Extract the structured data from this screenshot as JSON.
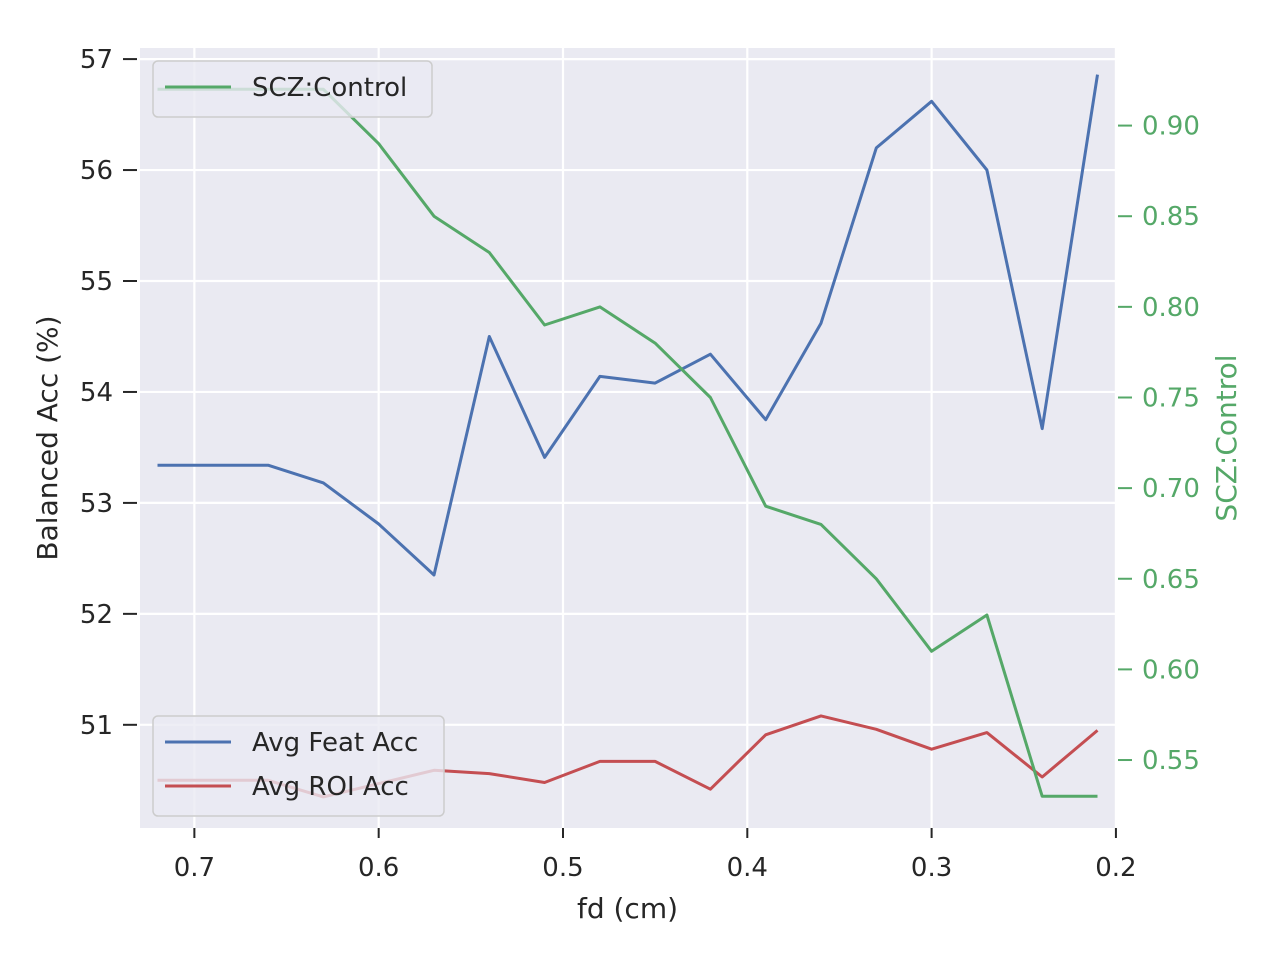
{
  "chart_data": {
    "type": "line",
    "xlabel": "fd (cm)",
    "ylabel_left": "Balanced Acc (%)",
    "ylabel_right": "SCZ:Control",
    "x_inverted": true,
    "xlim": [
      0.7295,
      0.2005
    ],
    "x_ticks": [
      0.7,
      0.6,
      0.5,
      0.4,
      0.3,
      0.2
    ],
    "x_tick_labels": [
      "0.7",
      "0.6",
      "0.5",
      "0.4",
      "0.3",
      "0.2"
    ],
    "ylim_left": [
      50.07,
      57.1
    ],
    "y_left_ticks": [
      51,
      52,
      53,
      54,
      55,
      56,
      57
    ],
    "y_left_tick_labels": [
      "51",
      "52",
      "53",
      "54",
      "55",
      "56",
      "57"
    ],
    "ylim_right": [
      0.5125,
      0.9428
    ],
    "y_right_ticks": [
      0.55,
      0.6,
      0.65,
      0.7,
      0.75,
      0.8,
      0.85,
      0.9
    ],
    "y_right_tick_labels": [
      "0.55",
      "0.60",
      "0.65",
      "0.70",
      "0.75",
      "0.80",
      "0.85",
      "0.90"
    ],
    "grid": true,
    "x": [
      0.72,
      0.69,
      0.66,
      0.63,
      0.6,
      0.57,
      0.54,
      0.51,
      0.48,
      0.45,
      0.42,
      0.39,
      0.36,
      0.33,
      0.3,
      0.27,
      0.24,
      0.21
    ],
    "series": [
      {
        "name": "Avg Feat Acc",
        "axis": "left",
        "color": "#4c72b0",
        "values": [
          53.34,
          53.34,
          53.34,
          53.18,
          52.81,
          52.35,
          54.5,
          53.41,
          54.14,
          54.08,
          54.34,
          53.75,
          54.62,
          56.2,
          56.62,
          56.0,
          53.67,
          56.86
        ]
      },
      {
        "name": "Avg ROI Acc",
        "axis": "left",
        "color": "#c44e52",
        "values": [
          50.5,
          50.5,
          50.5,
          50.35,
          50.47,
          50.59,
          50.56,
          50.48,
          50.67,
          50.67,
          50.42,
          50.91,
          51.08,
          50.96,
          50.78,
          50.93,
          50.53,
          50.95
        ]
      },
      {
        "name": "SCZ:Control",
        "axis": "right",
        "color": "#55a868",
        "values": [
          0.92,
          0.92,
          0.92,
          0.92,
          0.89,
          0.85,
          0.83,
          0.79,
          0.8,
          0.78,
          0.75,
          0.69,
          0.68,
          0.65,
          0.61,
          0.63,
          0.53,
          0.53
        ]
      }
    ],
    "legend_top_left": [
      "SCZ:Control"
    ],
    "legend_bottom_left": [
      "Avg Feat Acc",
      "Avg ROI Acc"
    ],
    "right_axis_color": "#55a868",
    "background_color": "#eaeaf2",
    "grid_color": "#ffffff"
  }
}
